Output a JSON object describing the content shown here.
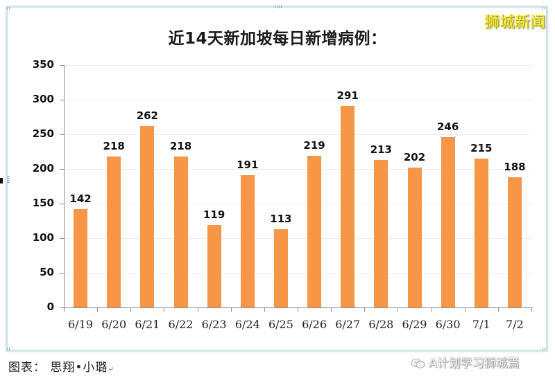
{
  "header": {
    "title": "近14天新加坡每日新增病例：",
    "watermark_top": "狮城新闻"
  },
  "footer": {
    "caption": "图表：  思翔•小璐",
    "caption_return_mark": "↵",
    "watermark_bottom": "A计划学习狮城篇",
    "watermark_icon": "wechat-icon"
  },
  "colors": {
    "bar": "#f79646",
    "grid": "#ececec",
    "axis": "#8c8c8c",
    "frame": "#d6e8ee",
    "watermark_top": "#f7ea1c"
  },
  "axis": {
    "y_ticks": [
      "0",
      "50",
      "100",
      "150",
      "200",
      "250",
      "300",
      "350"
    ],
    "x_labels": [
      "6/19",
      "6/20",
      "6/21",
      "6/22",
      "6/23",
      "6/24",
      "6/25",
      "6/26",
      "6/27",
      "6/28",
      "6/29",
      "6/30",
      "7/1",
      "7/2"
    ]
  },
  "bars": {
    "labels": [
      "142",
      "218",
      "262",
      "218",
      "119",
      "191",
      "113",
      "219",
      "291",
      "213",
      "202",
      "246",
      "215",
      "188"
    ]
  },
  "chart_data": {
    "type": "bar",
    "title": "近14天新加坡每日新增病例：",
    "categories": [
      "6/19",
      "6/20",
      "6/21",
      "6/22",
      "6/23",
      "6/24",
      "6/25",
      "6/26",
      "6/27",
      "6/28",
      "6/29",
      "6/30",
      "7/1",
      "7/2"
    ],
    "values": [
      142,
      218,
      262,
      218,
      119,
      191,
      113,
      219,
      291,
      213,
      202,
      246,
      215,
      188
    ],
    "xlabel": "",
    "ylabel": "",
    "ylim": [
      0,
      350
    ],
    "yticks": [
      0,
      50,
      100,
      150,
      200,
      250,
      300,
      350
    ],
    "grid": true,
    "legend": null,
    "data_labels": true,
    "bar_color": "#f79646"
  }
}
